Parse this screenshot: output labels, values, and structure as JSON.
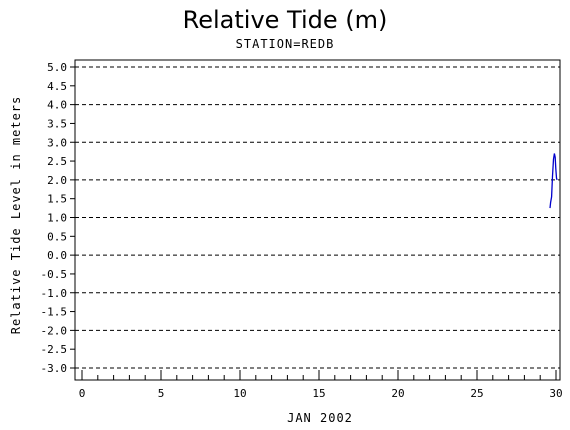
{
  "chart_data": {
    "type": "line",
    "title": "Relative Tide (m)",
    "subtitle": "STATION=REDB",
    "xlabel": "JAN 2002",
    "ylabel": "Relative Tide Level in meters",
    "xlim": [
      0,
      30
    ],
    "ylim": [
      -3.0,
      5.0
    ],
    "x_ticks": [
      0,
      5,
      10,
      15,
      20,
      25,
      30
    ],
    "x_minor_step": 1,
    "y_ticks": [
      5.0,
      4.5,
      4.0,
      3.5,
      3.0,
      2.5,
      2.0,
      1.5,
      1.0,
      0.5,
      0.0,
      -0.5,
      -1.0,
      -1.5,
      -2.0,
      -2.5,
      -3.0
    ],
    "y_tick_labels": [
      "5.0",
      "4.5",
      "4.0",
      "3.5",
      "3.0",
      "2.5",
      "2.0",
      "1.5",
      "1.0",
      "0.5",
      "0.0",
      "-0.5",
      "-1.0",
      "-1.5",
      "-2.0",
      "-2.5",
      "-3.0"
    ],
    "gridlines": [
      5.0,
      4.0,
      3.0,
      2.0,
      1.0,
      0.0,
      -1.0,
      -2.0,
      -3.0
    ],
    "grid_style": "dashed horizontal",
    "series": [
      {
        "color": "#0000cc",
        "x": [
          29.62,
          29.66,
          29.72,
          29.78,
          29.84,
          29.9,
          29.95,
          29.99,
          30.03,
          30.07
        ],
        "y": [
          1.25,
          1.4,
          1.55,
          2.1,
          2.55,
          2.7,
          2.6,
          2.3,
          2.05,
          2.0
        ]
      }
    ]
  }
}
